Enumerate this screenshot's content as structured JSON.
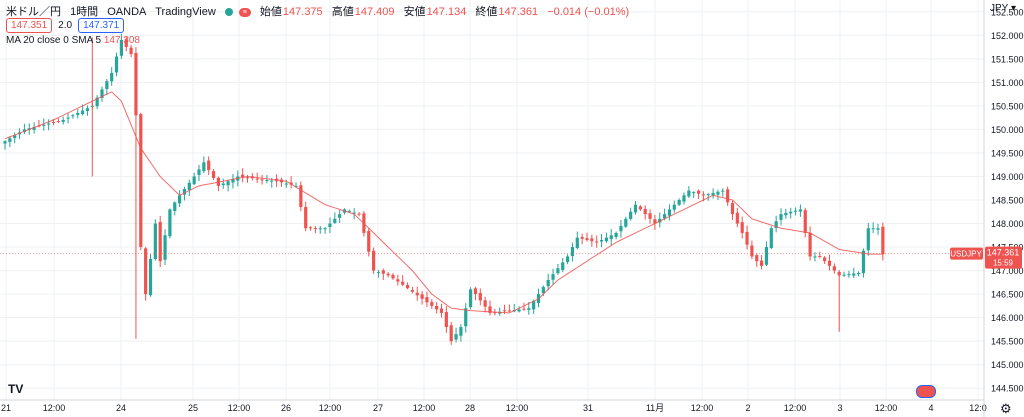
{
  "header": {
    "symbol": "米ドル／円",
    "interval": "1時間",
    "broker": "OANDA",
    "platform": "TradingView",
    "open_label": "始値",
    "open": "147.375",
    "high_label": "高値",
    "high": "147.409",
    "low_label": "安値",
    "low": "147.134",
    "close_label": "終値",
    "close": "147.361",
    "change": "−0.014 (−0.01%)",
    "bid": "147.351",
    "spread": "2.0",
    "ask": "147.371"
  },
  "indicator": {
    "label": "MA 20 close 0 SMA 5",
    "value": "147.308"
  },
  "axis": {
    "unit": "JPY"
  },
  "price_tag": {
    "symbol": "USDJPY",
    "price": "147.361",
    "countdown": "15:59"
  },
  "logo": "TV",
  "colors": {
    "up": "#26a69a",
    "down": "#ef5350",
    "ma": "#ef5350",
    "grid": "#eef0f3"
  },
  "chart_data": {
    "type": "candlestick",
    "ylim": [
      144.25,
      152.75
    ],
    "yticks": [
      "144.500",
      "145.000",
      "145.500",
      "146.000",
      "146.500",
      "147.000",
      "147.500",
      "148.000",
      "148.500",
      "149.000",
      "149.500",
      "150.000",
      "150.500",
      "151.000",
      "151.500",
      "152.000",
      "152.500"
    ],
    "xticks": [
      "21",
      "12:00",
      "24",
      "25",
      "12:00",
      "26",
      "12:00",
      "27",
      "12:00",
      "28",
      "12:00",
      "31",
      "11月",
      "12:00",
      "2",
      "12:00",
      "3",
      "12:00",
      "4",
      "12:0"
    ],
    "current_price": 147.361,
    "price_anchors": [
      [
        0,
        149.75
      ],
      [
        4,
        150.0
      ],
      [
        12,
        150.2
      ],
      [
        18,
        150.5
      ],
      [
        22,
        151.2
      ],
      [
        24,
        151.9
      ],
      [
        26,
        151.6
      ],
      [
        27,
        150.3
      ],
      [
        28,
        147.5
      ],
      [
        29,
        146.5
      ],
      [
        31,
        148.0
      ],
      [
        32,
        147.2
      ],
      [
        34,
        148.3
      ],
      [
        36,
        148.6
      ],
      [
        39,
        149.0
      ],
      [
        41,
        149.3
      ],
      [
        44,
        148.8
      ],
      [
        48,
        149.0
      ],
      [
        56,
        148.9
      ],
      [
        60,
        148.8
      ],
      [
        62,
        147.9
      ],
      [
        66,
        147.9
      ],
      [
        70,
        148.3
      ],
      [
        73,
        148.2
      ],
      [
        76,
        147.0
      ],
      [
        79,
        146.9
      ],
      [
        82,
        146.7
      ],
      [
        86,
        146.4
      ],
      [
        90,
        146.1
      ],
      [
        92,
        145.5
      ],
      [
        94,
        145.8
      ],
      [
        96,
        146.6
      ],
      [
        97,
        146.5
      ],
      [
        100,
        146.1
      ],
      [
        108,
        146.2
      ],
      [
        112,
        146.8
      ],
      [
        116,
        147.3
      ],
      [
        118,
        147.7
      ],
      [
        122,
        147.6
      ],
      [
        126,
        147.8
      ],
      [
        130,
        148.4
      ],
      [
        134,
        148.0
      ],
      [
        138,
        148.4
      ],
      [
        141,
        148.7
      ],
      [
        144,
        148.6
      ],
      [
        148,
        148.7
      ],
      [
        150,
        148.2
      ],
      [
        152,
        147.8
      ],
      [
        154,
        147.3
      ],
      [
        156,
        147.1
      ],
      [
        158,
        147.9
      ],
      [
        160,
        148.2
      ],
      [
        164,
        148.3
      ],
      [
        166,
        147.3
      ],
      [
        168,
        147.3
      ],
      [
        172,
        146.9
      ],
      [
        176,
        146.95
      ],
      [
        178,
        147.9
      ],
      [
        180,
        147.9
      ],
      [
        181,
        147.35
      ]
    ],
    "ma_anchors": [
      [
        0,
        149.8
      ],
      [
        10,
        150.2
      ],
      [
        22,
        150.8
      ],
      [
        24,
        150.6
      ],
      [
        28,
        149.6
      ],
      [
        32,
        149.0
      ],
      [
        36,
        148.6
      ],
      [
        40,
        148.8
      ],
      [
        50,
        149.0
      ],
      [
        58,
        148.9
      ],
      [
        66,
        148.4
      ],
      [
        72,
        148.2
      ],
      [
        78,
        147.6
      ],
      [
        84,
        147.0
      ],
      [
        88,
        146.5
      ],
      [
        92,
        146.2
      ],
      [
        96,
        146.15
      ],
      [
        104,
        146.1
      ],
      [
        110,
        146.4
      ],
      [
        114,
        146.8
      ],
      [
        120,
        147.2
      ],
      [
        126,
        147.6
      ],
      [
        132,
        147.9
      ],
      [
        136,
        148.1
      ],
      [
        142,
        148.4
      ],
      [
        146,
        148.6
      ],
      [
        150,
        148.5
      ],
      [
        154,
        148.1
      ],
      [
        160,
        147.9
      ],
      [
        166,
        147.8
      ],
      [
        172,
        147.45
      ],
      [
        178,
        147.35
      ],
      [
        181,
        147.35
      ]
    ]
  }
}
